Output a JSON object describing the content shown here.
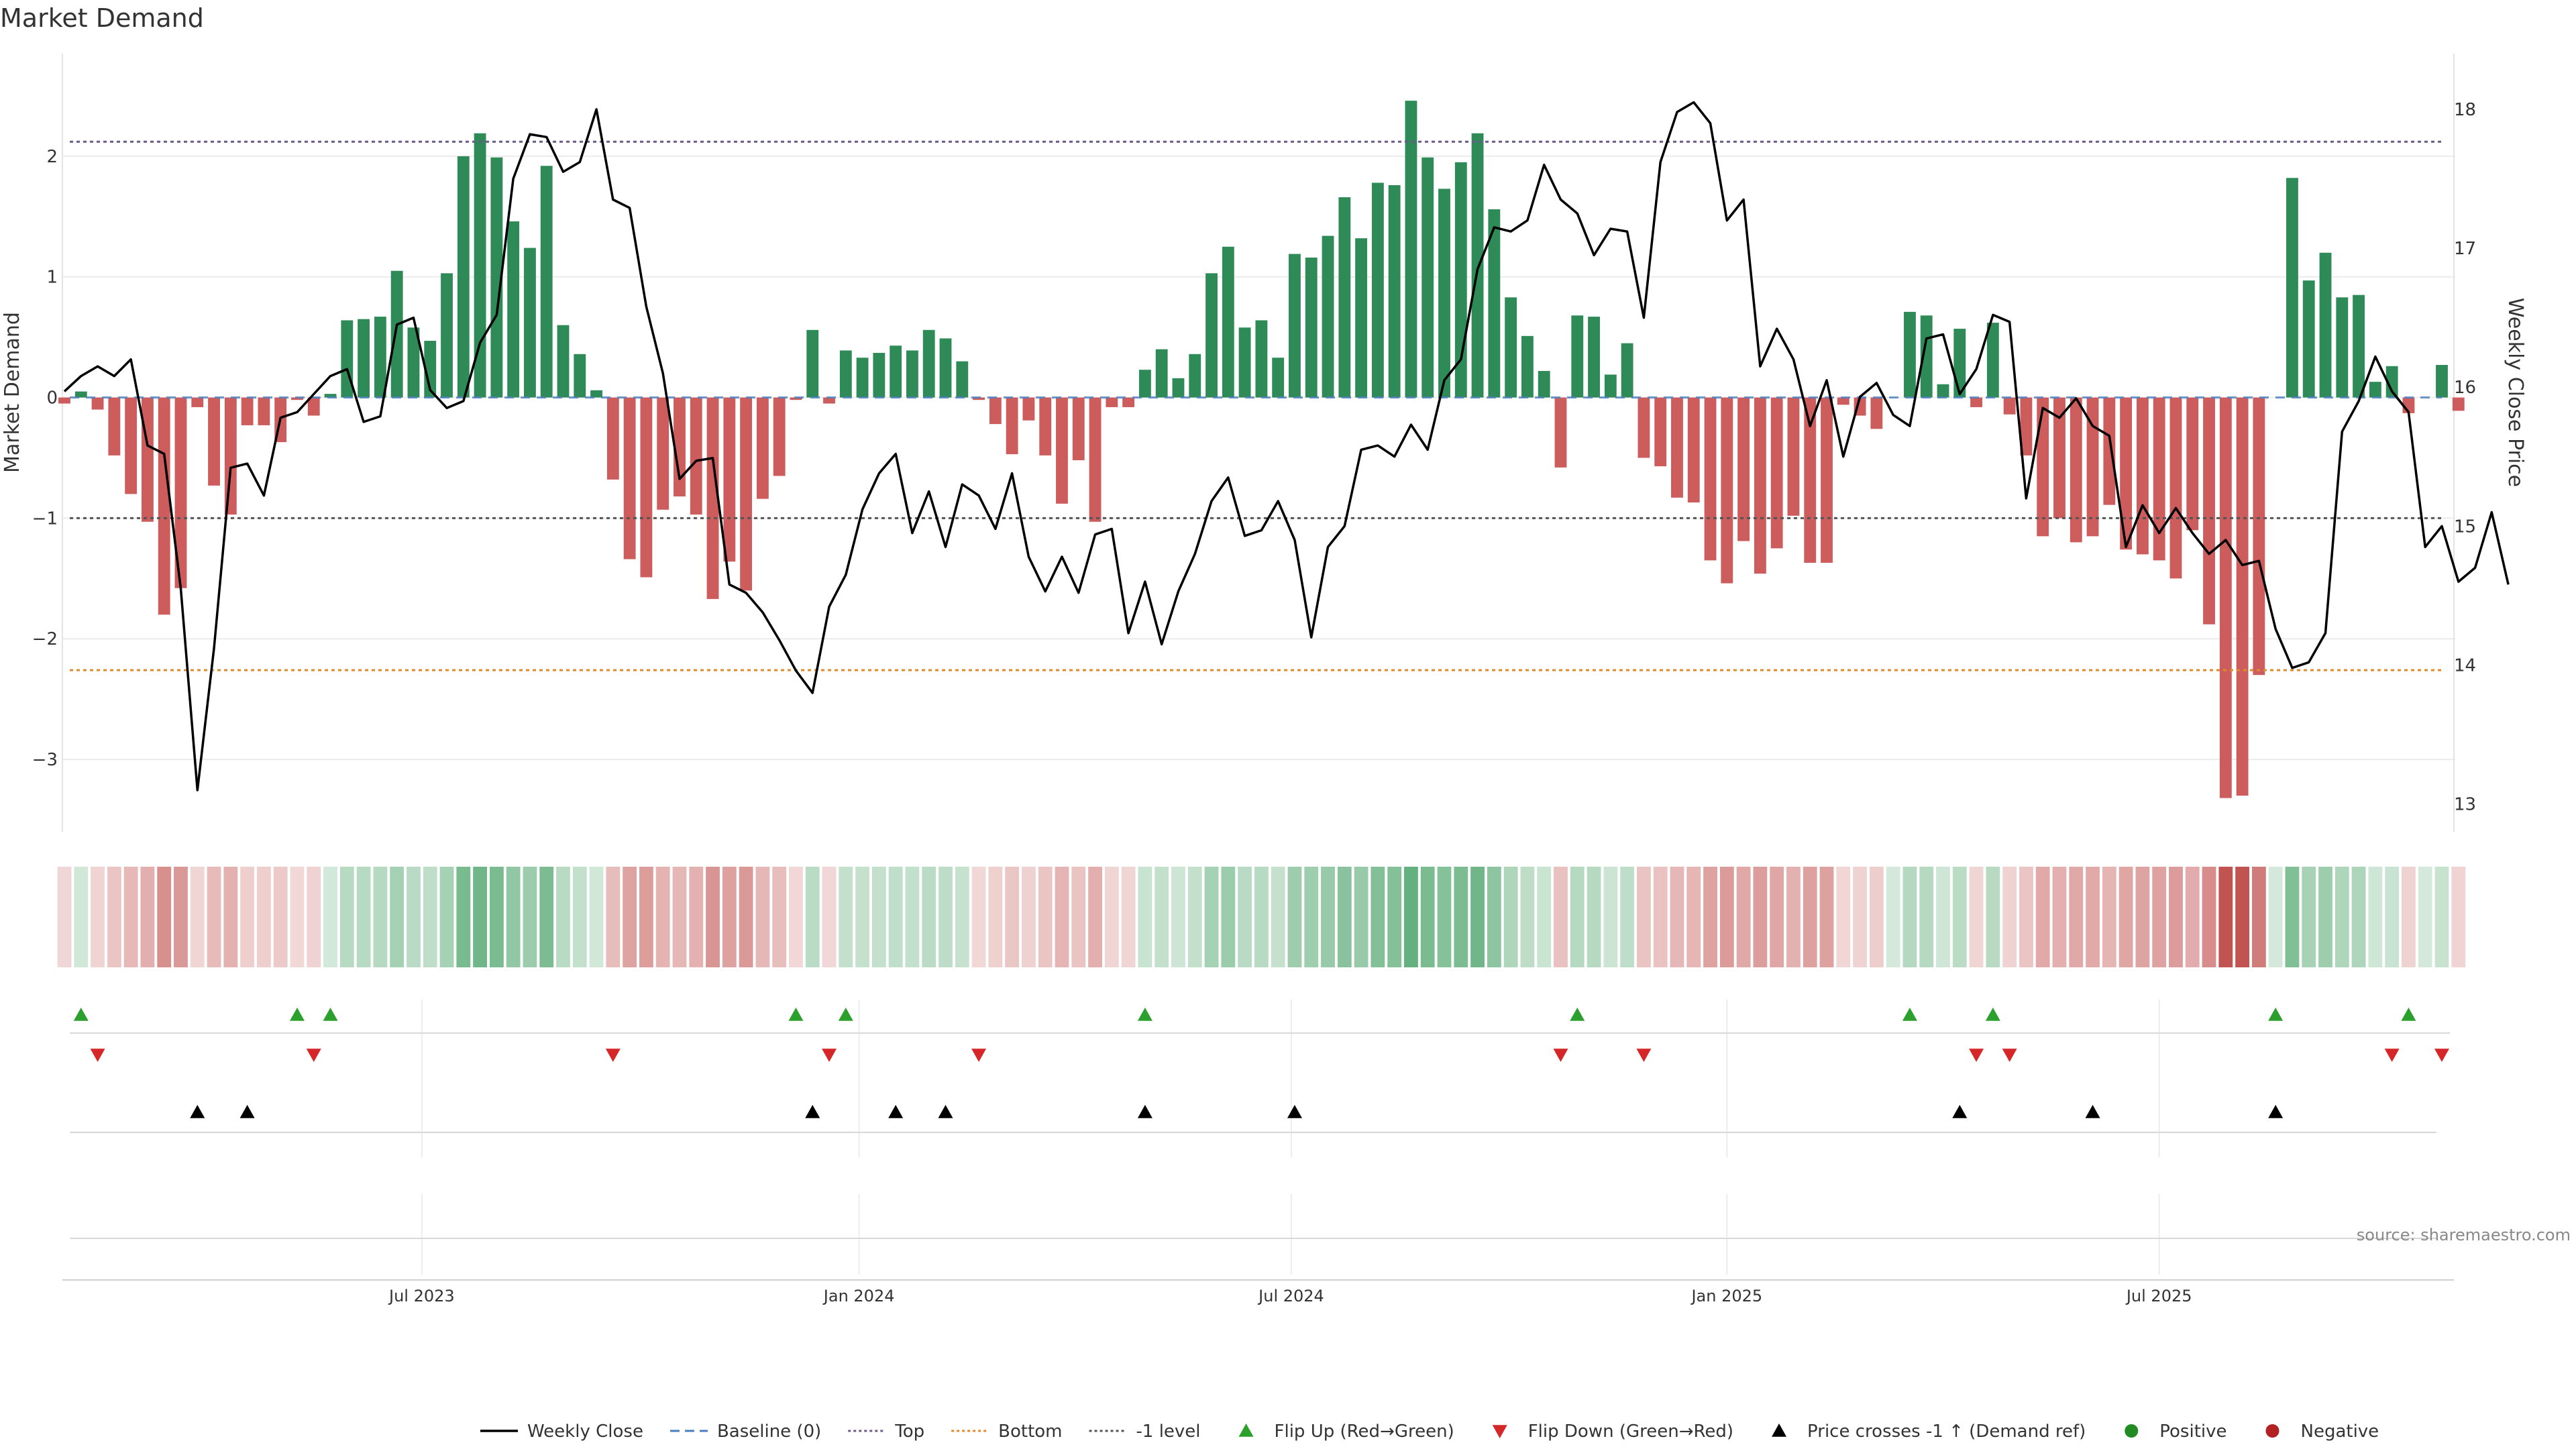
{
  "colors": {
    "positive": "#2e8b57",
    "negative": "#cd5c5c",
    "price_line": "#000000",
    "baseline": "#4a7dbf",
    "top_line": "#6a5a8a",
    "bottom_line": "#e08a2a",
    "minus_one_line": "#555555",
    "flip_up": "#2ca02c",
    "flip_down": "#d62728",
    "cross_up": "#000000",
    "legend_positive": "#228b22",
    "legend_negative": "#b22222"
  },
  "chart_data": {
    "type": "bar",
    "title": "Market Demand",
    "ylabel_left": "Market Demand",
    "ylabel_right": "Weekly Close Price",
    "source": "source: sharemaestro.com",
    "ylim_left": [
      -3.6,
      2.85
    ],
    "ylim_right": [
      12.8,
      18.4
    ],
    "yticks_left": [
      {
        "v": 2,
        "label": "2"
      },
      {
        "v": 1,
        "label": "1"
      },
      {
        "v": 0,
        "label": "0"
      },
      {
        "v": -1,
        "label": "−1"
      },
      {
        "v": -2,
        "label": "−2"
      },
      {
        "v": -3,
        "label": "−3"
      }
    ],
    "yticks_right": [
      {
        "v": 18,
        "label": "18"
      },
      {
        "v": 17,
        "label": "17"
      },
      {
        "v": 16,
        "label": "16"
      },
      {
        "v": 15,
        "label": "15"
      },
      {
        "v": 14,
        "label": "14"
      },
      {
        "v": 13,
        "label": "13"
      }
    ],
    "x_count": 144,
    "xticks": [
      {
        "i": 21.5,
        "label": "Jul 2023"
      },
      {
        "i": 47.8,
        "label": "Jan 2024"
      },
      {
        "i": 73.8,
        "label": "Jul 2024"
      },
      {
        "i": 100,
        "label": "Jan 2025"
      },
      {
        "i": 126,
        "label": "Jul 2025"
      }
    ],
    "reference_lines": {
      "top": 2.12,
      "bottom": -2.26,
      "minus_one": -1.0,
      "baseline": 0
    },
    "demand": [
      -0.05,
      0.05,
      -0.1,
      -0.48,
      -0.8,
      -1.03,
      -1.8,
      -1.58,
      -0.08,
      -0.73,
      -0.97,
      -0.23,
      -0.23,
      -0.37,
      -0.02,
      -0.15,
      0.03,
      0.64,
      0.65,
      0.67,
      1.05,
      0.58,
      0.47,
      1.03,
      2.0,
      2.19,
      1.99,
      1.46,
      1.24,
      1.92,
      0.6,
      0.36,
      0.06,
      -0.68,
      -1.34,
      -1.49,
      -0.93,
      -0.82,
      -0.97,
      -1.67,
      -1.36,
      -1.6,
      -0.84,
      -0.65,
      -0.02,
      0.56,
      -0.05,
      0.39,
      0.33,
      0.37,
      0.43,
      0.39,
      0.56,
      0.49,
      0.3,
      -0.02,
      -0.22,
      -0.47,
      -0.19,
      -0.48,
      -0.88,
      -0.52,
      -1.03,
      -0.08,
      -0.08,
      0.23,
      0.4,
      0.16,
      0.36,
      1.03,
      1.25,
      0.58,
      0.64,
      0.33,
      1.19,
      1.16,
      1.34,
      1.66,
      1.32,
      1.78,
      1.76,
      2.46,
      1.99,
      1.73,
      1.95,
      2.19,
      1.56,
      0.83,
      0.51,
      0.22,
      -0.58,
      0.68,
      0.67,
      0.19,
      0.45,
      -0.5,
      -0.57,
      -0.83,
      -0.87,
      -1.35,
      -1.54,
      -1.19,
      -1.46,
      -1.25,
      -0.98,
      -1.37,
      -1.37,
      -0.06,
      -0.15,
      -0.26,
      0.0,
      0.71,
      0.68,
      0.11,
      0.57,
      -0.08,
      0.62,
      -0.14,
      -0.48,
      -1.15,
      -1.0,
      -1.2,
      -1.15,
      -0.89,
      -1.26,
      -1.3,
      -1.35,
      -1.5,
      -1.1,
      -1.88,
      -3.32,
      -3.3,
      -2.3,
      0.0,
      1.82,
      0.97,
      1.2,
      0.83,
      0.85,
      0.13,
      0.26,
      -0.13,
      0.0,
      0.27,
      -0.11
    ],
    "price": [
      15.97,
      16.08,
      16.15,
      16.08,
      16.2,
      15.58,
      15.52,
      14.55,
      13.1,
      14.12,
      15.42,
      15.45,
      15.22,
      15.78,
      15.82,
      15.95,
      16.08,
      16.13,
      15.75,
      15.79,
      16.45,
      16.5,
      15.98,
      15.85,
      15.9,
      16.32,
      16.52,
      17.5,
      17.82,
      17.8,
      17.55,
      17.62,
      18.0,
      17.35,
      17.29,
      16.58,
      16.1,
      15.34,
      15.47,
      15.49,
      14.58,
      14.52,
      14.38,
      14.18,
      13.96,
      13.8,
      14.42,
      14.65,
      15.12,
      15.38,
      15.52,
      14.95,
      15.25,
      14.85,
      15.3,
      15.22,
      14.98,
      15.38,
      14.78,
      14.53,
      14.78,
      14.52,
      14.94,
      14.98,
      14.23,
      14.6,
      14.15,
      14.53,
      14.8,
      15.18,
      15.35,
      14.93,
      14.97,
      15.18,
      14.9,
      14.2,
      14.85,
      15.0,
      15.55,
      15.58,
      15.5,
      15.73,
      15.55,
      16.05,
      16.2,
      16.85,
      17.15,
      17.12,
      17.2,
      17.6,
      17.35,
      17.25,
      16.95,
      17.14,
      17.12,
      16.5,
      17.62,
      17.98,
      18.05,
      17.9,
      17.2,
      17.35,
      16.15,
      16.42,
      16.2,
      15.72,
      16.05,
      15.5,
      15.93,
      16.03,
      15.8,
      15.72,
      16.35,
      16.38,
      15.95,
      16.13,
      16.52,
      16.47,
      15.2,
      15.85,
      15.78,
      15.92,
      15.72,
      15.65,
      14.85,
      15.15,
      14.95,
      15.13,
      14.95,
      14.8,
      14.9,
      14.72,
      14.75,
      14.26,
      13.98,
      14.02,
      14.23,
      15.68,
      15.9,
      16.22,
      15.97,
      15.82,
      14.85,
      15.0,
      14.6,
      14.7,
      15.1,
      14.58
    ]
  },
  "flip_up_indices": [
    1,
    14,
    16,
    44,
    47,
    65,
    91,
    111,
    116,
    133,
    141
  ],
  "flip_down_indices": [
    2,
    15,
    33,
    46,
    55,
    90,
    95,
    115,
    117,
    140,
    143
  ],
  "cross_up_indices": [
    8,
    11,
    45,
    50,
    53,
    65,
    74,
    114,
    122,
    133
  ],
  "legend": [
    {
      "key": "weekly_close",
      "label": "Weekly Close",
      "symbol": "line"
    },
    {
      "key": "baseline",
      "label": "Baseline (0)",
      "symbol": "dash"
    },
    {
      "key": "top",
      "label": "Top",
      "symbol": "dot"
    },
    {
      "key": "bottom",
      "label": "Bottom",
      "symbol": "dot-orange"
    },
    {
      "key": "minus_one",
      "label": "-1 level",
      "symbol": "dot-gray"
    },
    {
      "key": "flip_up",
      "label": "Flip Up (Red→Green)",
      "symbol": "tri-up-green"
    },
    {
      "key": "flip_down",
      "label": "Flip Down (Green→Red)",
      "symbol": "tri-down-red"
    },
    {
      "key": "cross_up",
      "label": "Price crosses -1 ↑ (Demand ref)",
      "symbol": "tri-up-black"
    },
    {
      "key": "positive",
      "label": "Positive",
      "symbol": "dot-green"
    },
    {
      "key": "negative",
      "label": "Negative",
      "symbol": "dot-red"
    }
  ]
}
